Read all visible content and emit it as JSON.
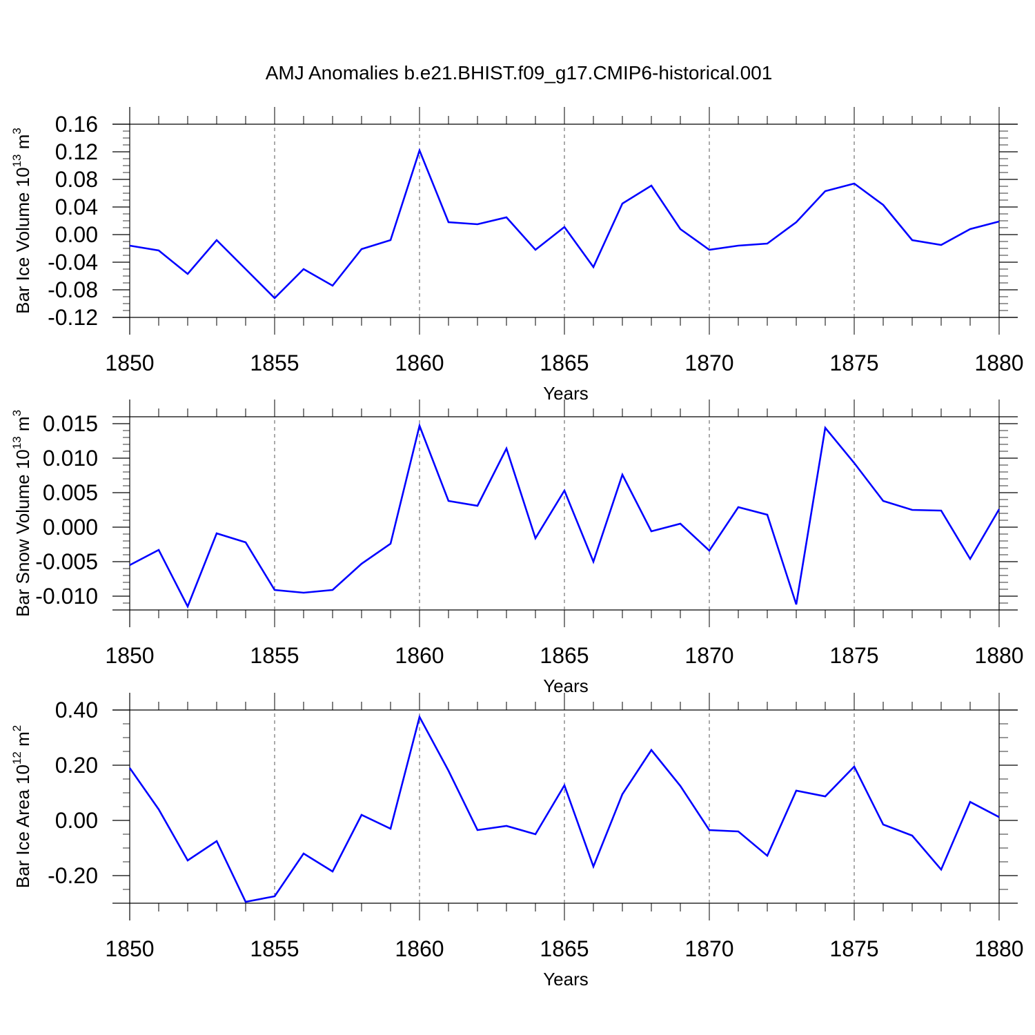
{
  "title": "AMJ Anomalies b.e21.BHIST.f09_g17.CMIP6-historical.001",
  "line_color": "#0000ff",
  "chart_data": [
    {
      "type": "line",
      "title": "",
      "xlabel": "Years",
      "ylabel": {
        "main": "Bar Ice Volume 10",
        "exp": "13",
        "unit": " m",
        "unit_exp": "3"
      },
      "xlim": [
        1850,
        1880
      ],
      "ylim": [
        -0.12,
        0.16
      ],
      "x_ticks": [
        "1850",
        "1855",
        "1860",
        "1865",
        "1870",
        "1875",
        "1880"
      ],
      "y_ticks": [
        "-0.12",
        "-0.08",
        "-0.04",
        "0.00",
        "0.04",
        "0.08",
        "0.12",
        "0.16"
      ],
      "x": [
        1850,
        1851,
        1852,
        1853,
        1854,
        1855,
        1856,
        1857,
        1858,
        1859,
        1860,
        1861,
        1862,
        1863,
        1864,
        1865,
        1866,
        1867,
        1868,
        1869,
        1870,
        1871,
        1872,
        1873,
        1874,
        1875,
        1876,
        1877,
        1878,
        1879,
        1880
      ],
      "series": [
        {
          "name": "Bar Ice Volume",
          "values": [
            -0.016,
            -0.023,
            -0.057,
            -0.008,
            -0.05,
            -0.092,
            -0.05,
            -0.074,
            -0.021,
            -0.008,
            0.122,
            0.018,
            0.015,
            0.025,
            -0.022,
            0.011,
            -0.047,
            0.045,
            0.071,
            0.008,
            -0.022,
            -0.016,
            -0.013,
            0.018,
            0.063,
            0.074,
            0.043,
            -0.008,
            -0.015,
            0.008,
            0.019
          ]
        }
      ]
    },
    {
      "type": "line",
      "title": "",
      "xlabel": "Years",
      "ylabel": {
        "main": "Bar Snow Volume 10",
        "exp": "13",
        "unit": " m",
        "unit_exp": "3"
      },
      "xlim": [
        1850,
        1880
      ],
      "ylim": [
        -0.012,
        0.016
      ],
      "x_ticks": [
        "1850",
        "1855",
        "1860",
        "1865",
        "1870",
        "1875",
        "1880"
      ],
      "y_ticks": [
        "-0.010",
        "-0.005",
        "0.000",
        "0.005",
        "0.010",
        "0.015"
      ],
      "x": [
        1850,
        1851,
        1852,
        1853,
        1854,
        1855,
        1856,
        1857,
        1858,
        1859,
        1860,
        1861,
        1862,
        1863,
        1864,
        1865,
        1866,
        1867,
        1868,
        1869,
        1870,
        1871,
        1872,
        1873,
        1874,
        1875,
        1876,
        1877,
        1878,
        1879,
        1880
      ],
      "series": [
        {
          "name": "Bar Snow Volume",
          "values": [
            -0.0055,
            -0.0033,
            -0.0115,
            -0.0009,
            -0.0022,
            -0.0091,
            -0.0095,
            -0.0091,
            -0.0053,
            -0.0024,
            0.0147,
            0.0038,
            0.0031,
            0.0114,
            -0.0016,
            0.0053,
            -0.005,
            0.0076,
            -0.0006,
            0.0005,
            -0.0034,
            0.0029,
            0.0018,
            -0.0112,
            0.0144,
            0.0093,
            0.0038,
            0.0025,
            0.0024,
            -0.0046,
            0.0026
          ]
        }
      ]
    },
    {
      "type": "line",
      "title": "",
      "xlabel": "Years",
      "ylabel": {
        "main": "Bar Ice Area 10",
        "exp": "12",
        "unit": " m",
        "unit_exp": "2"
      },
      "xlim": [
        1850,
        1880
      ],
      "ylim": [
        -0.3,
        0.4
      ],
      "x_ticks": [
        "1850",
        "1855",
        "1860",
        "1865",
        "1870",
        "1875",
        "1880"
      ],
      "y_ticks": [
        "-0.20",
        "0.00",
        "0.20",
        "0.40"
      ],
      "x": [
        1850,
        1851,
        1852,
        1853,
        1854,
        1855,
        1856,
        1857,
        1858,
        1859,
        1860,
        1861,
        1862,
        1863,
        1864,
        1865,
        1866,
        1867,
        1868,
        1869,
        1870,
        1871,
        1872,
        1873,
        1874,
        1875,
        1876,
        1877,
        1878,
        1879,
        1880
      ],
      "series": [
        {
          "name": "Bar Ice Area",
          "values": [
            0.19,
            0.04,
            -0.145,
            -0.075,
            -0.295,
            -0.275,
            -0.12,
            -0.185,
            0.02,
            -0.03,
            0.375,
            0.18,
            -0.035,
            -0.02,
            -0.05,
            0.127,
            -0.167,
            0.095,
            0.255,
            0.125,
            -0.035,
            -0.04,
            -0.128,
            0.108,
            0.087,
            0.195,
            -0.015,
            -0.055,
            -0.178,
            0.067,
            0.012
          ]
        }
      ]
    }
  ]
}
